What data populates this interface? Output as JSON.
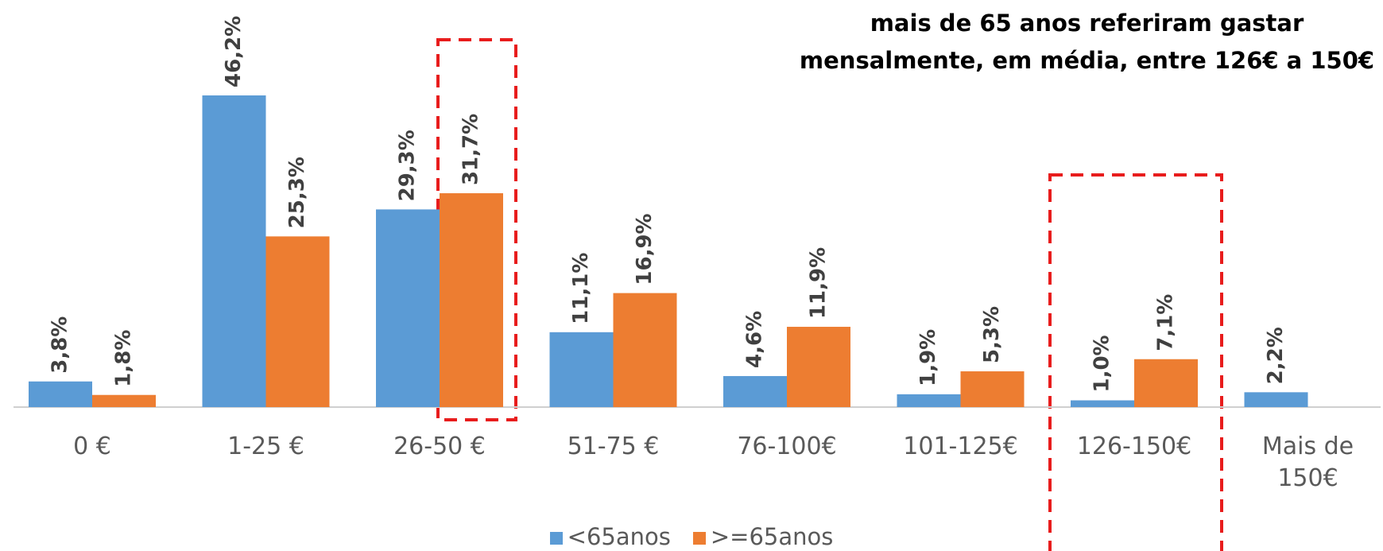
{
  "chart_data": {
    "type": "bar",
    "categories": [
      "0 €",
      "1-25 €",
      "26-50 €",
      "51-75 €",
      "76-100€",
      "101-125€",
      "126-150€",
      "Mais de 150€"
    ],
    "series": [
      {
        "name": "<65anos",
        "color": "#5b9bd5",
        "values": [
          3.8,
          46.2,
          29.3,
          11.1,
          4.6,
          1.9,
          1.0,
          2.2
        ],
        "value_labels": [
          "3,8%",
          "46,2%",
          "29,3%",
          "11,1%",
          "4,6%",
          "1,9%",
          "1,0%",
          "2,2%"
        ]
      },
      {
        "name": ">=65anos",
        "color": "#ed7d31",
        "values": [
          1.8,
          25.3,
          31.7,
          16.9,
          11.9,
          5.3,
          7.1,
          null
        ],
        "value_labels": [
          "1,8%",
          "25,3%",
          "31,7%",
          "16,9%",
          "11,9%",
          "5,3%",
          "7,1%",
          null
        ]
      }
    ],
    "annotation": "mais de 65 anos referiram gastar mensalmente,  em média, entre 126€ a 150€",
    "legend": "bottom"
  }
}
